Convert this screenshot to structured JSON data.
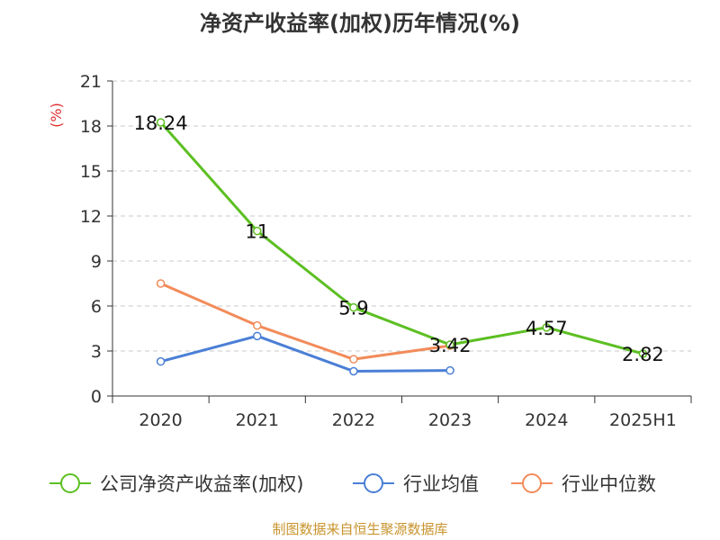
{
  "chart_data": {
    "type": "line",
    "title": "净资产收益率(加权)历年情况(%)",
    "ylabel": "(%)",
    "xlabel": "",
    "categories": [
      "2020",
      "2021",
      "2022",
      "2023",
      "2024",
      "2025H1"
    ],
    "yticks": [
      0,
      3,
      6,
      9,
      12,
      15,
      18,
      21
    ],
    "ylim": [
      0,
      21
    ],
    "grid": true,
    "legend_position": "bottom",
    "series": [
      {
        "name": "公司净资产收益率(加权)",
        "color": "#5cbf22",
        "values": [
          18.24,
          11,
          5.9,
          3.42,
          4.57,
          2.82
        ],
        "labels": [
          "18.24",
          "11",
          "5.9",
          "3.42",
          "4.57",
          "2.82"
        ]
      },
      {
        "name": "行业均值",
        "color": "#4a7fd6",
        "values": [
          2.3,
          4.0,
          1.65,
          1.7,
          null,
          null
        ]
      },
      {
        "name": "行业中位数",
        "color": "#f28b5a",
        "values": [
          7.5,
          4.7,
          2.45,
          3.35,
          null,
          null
        ]
      }
    ],
    "source_note": "制图数据来自恒生聚源数据库",
    "source_color": "#c8942d",
    "ylabel_color": "#e03030"
  }
}
